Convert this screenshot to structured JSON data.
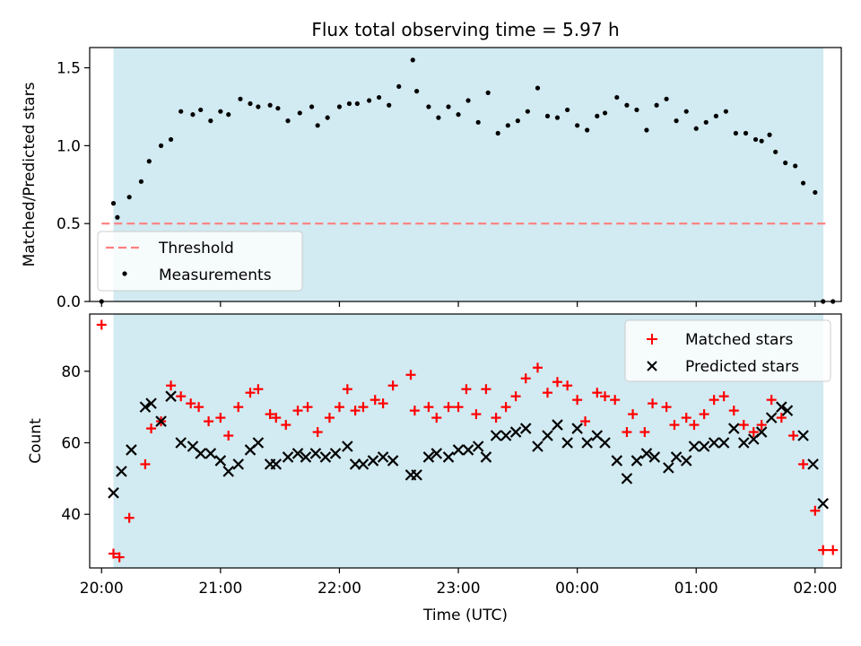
{
  "figure": {
    "title": "Flux total observing time = 5.97 h",
    "xlabel": "Time (UTC)"
  },
  "chart_data": [
    {
      "type": "scatter",
      "panel": "top",
      "ylabel": "Matched/Predicted stars",
      "xlim": [
        19.9,
        26.22
      ],
      "ylim": [
        0,
        1.63
      ],
      "y_ticks": [
        0.0,
        0.5,
        1.0,
        1.5
      ],
      "y_tick_labels": [
        "0.0",
        "0.5",
        "1.0",
        "1.5"
      ],
      "shaded_interval": [
        20.1,
        26.07
      ],
      "shade_color": "#add8e6",
      "legend_position": "lower-left",
      "threshold": {
        "name": "Threshold",
        "value": 0.5,
        "x_range": [
          20.0,
          26.1
        ],
        "color": "#ff7f7f"
      },
      "series": [
        {
          "name": "Measurements",
          "color": "#000000",
          "marker": "dot",
          "x": [
            20.0,
            20.1,
            20.133,
            20.233,
            20.333,
            20.4,
            20.5,
            20.583,
            20.667,
            20.767,
            20.833,
            20.917,
            21.0,
            21.067,
            21.167,
            21.25,
            21.317,
            21.417,
            21.483,
            21.567,
            21.667,
            21.767,
            21.817,
            21.9,
            22.0,
            22.083,
            22.15,
            22.25,
            22.333,
            22.417,
            22.5,
            22.617,
            22.65,
            22.75,
            22.833,
            22.917,
            23.0,
            23.083,
            23.167,
            23.25,
            23.333,
            23.417,
            23.5,
            23.583,
            23.667,
            23.75,
            23.833,
            23.917,
            24.0,
            24.083,
            24.167,
            24.233,
            24.333,
            24.417,
            24.5,
            24.583,
            24.667,
            24.75,
            24.833,
            24.917,
            25.0,
            25.083,
            25.167,
            25.25,
            25.333,
            25.417,
            25.5,
            25.55,
            25.617,
            25.667,
            25.75,
            25.833,
            25.9,
            26.0,
            26.067,
            26.15
          ],
          "y": [
            0.0,
            0.63,
            0.54,
            0.67,
            0.77,
            0.9,
            1.0,
            1.04,
            1.22,
            1.2,
            1.23,
            1.16,
            1.22,
            1.2,
            1.3,
            1.27,
            1.25,
            1.26,
            1.24,
            1.16,
            1.21,
            1.25,
            1.13,
            1.18,
            1.25,
            1.27,
            1.27,
            1.29,
            1.31,
            1.26,
            1.38,
            1.55,
            1.35,
            1.25,
            1.18,
            1.25,
            1.2,
            1.29,
            1.15,
            1.34,
            1.08,
            1.13,
            1.16,
            1.22,
            1.37,
            1.19,
            1.18,
            1.23,
            1.13,
            1.1,
            1.19,
            1.21,
            1.31,
            1.26,
            1.23,
            1.1,
            1.26,
            1.3,
            1.16,
            1.22,
            1.11,
            1.15,
            1.19,
            1.22,
            1.08,
            1.08,
            1.04,
            1.03,
            1.07,
            0.96,
            0.89,
            0.87,
            0.76,
            0.7,
            0.0,
            0.0
          ]
        }
      ]
    },
    {
      "type": "scatter",
      "panel": "bottom",
      "ylabel": "Count",
      "xlim": [
        19.9,
        26.22
      ],
      "ylim": [
        25,
        96
      ],
      "x_ticks": [
        20,
        21,
        22,
        23,
        24,
        25,
        26
      ],
      "x_tick_labels": [
        "20:00",
        "21:00",
        "22:00",
        "23:00",
        "00:00",
        "01:00",
        "02:00"
      ],
      "y_ticks": [
        40,
        60,
        80
      ],
      "y_tick_labels": [
        "40",
        "60",
        "80"
      ],
      "shaded_interval": [
        20.1,
        26.07
      ],
      "shade_color": "#add8e6",
      "legend_position": "top-right",
      "series": [
        {
          "name": "Matched stars",
          "color": "#ff0000",
          "marker": "plus",
          "x": [
            20.0,
            20.1,
            20.15,
            20.233,
            20.367,
            20.417,
            20.5,
            20.583,
            20.667,
            20.75,
            20.817,
            20.9,
            21.0,
            21.067,
            21.15,
            21.25,
            21.317,
            21.417,
            21.467,
            21.55,
            21.65,
            21.733,
            21.817,
            21.917,
            22.0,
            22.067,
            22.133,
            22.2,
            22.3,
            22.367,
            22.45,
            22.6,
            22.633,
            22.75,
            22.817,
            22.917,
            23.0,
            23.067,
            23.15,
            23.233,
            23.317,
            23.4,
            23.483,
            23.567,
            23.667,
            23.75,
            23.833,
            23.917,
            24.0,
            24.067,
            24.167,
            24.233,
            24.317,
            24.417,
            24.467,
            24.567,
            24.633,
            24.75,
            24.817,
            24.917,
            24.983,
            25.067,
            25.15,
            25.233,
            25.317,
            25.4,
            25.483,
            25.55,
            25.633,
            25.717,
            25.817,
            25.9,
            26.0,
            26.067,
            26.15
          ],
          "y": [
            93,
            29,
            28,
            39,
            54,
            64,
            66,
            76,
            73,
            71,
            70,
            66,
            67,
            62,
            70,
            74,
            75,
            68,
            67,
            65,
            69,
            70,
            63,
            67,
            70,
            75,
            69,
            70,
            72,
            71,
            76,
            79,
            69,
            70,
            67,
            70,
            70,
            75,
            68,
            75,
            67,
            70,
            73,
            78,
            81,
            74,
            77,
            76,
            72,
            66,
            74,
            73,
            72,
            63,
            68,
            63,
            71,
            70,
            65,
            67,
            65,
            68,
            72,
            73,
            69,
            65,
            63,
            65,
            72,
            67,
            62,
            54,
            41,
            30,
            30
          ]
        },
        {
          "name": "Predicted stars",
          "color": "#000000",
          "marker": "x",
          "x": [
            20.1,
            20.167,
            20.25,
            20.367,
            20.417,
            20.5,
            20.583,
            20.667,
            20.767,
            20.833,
            20.917,
            21.0,
            21.067,
            21.15,
            21.25,
            21.317,
            21.417,
            21.467,
            21.567,
            21.65,
            21.717,
            21.8,
            21.883,
            21.967,
            22.067,
            22.133,
            22.2,
            22.283,
            22.367,
            22.45,
            22.6,
            22.65,
            22.75,
            22.817,
            22.917,
            23.0,
            23.083,
            23.167,
            23.233,
            23.317,
            23.4,
            23.483,
            23.567,
            23.667,
            23.75,
            23.833,
            23.917,
            24.0,
            24.083,
            24.167,
            24.233,
            24.333,
            24.417,
            24.5,
            24.583,
            24.65,
            24.767,
            24.833,
            24.917,
            24.983,
            25.067,
            25.15,
            25.233,
            25.317,
            25.4,
            25.483,
            25.55,
            25.633,
            25.717,
            25.767,
            25.9,
            25.983,
            26.067
          ],
          "y": [
            46,
            52,
            58,
            70,
            71,
            66,
            73,
            60,
            59,
            57,
            57,
            55,
            52,
            54,
            58,
            60,
            54,
            54,
            56,
            57,
            56,
            57,
            56,
            57,
            59,
            54,
            54,
            55,
            56,
            55,
            51,
            51,
            56,
            57,
            56,
            58,
            58,
            59,
            56,
            62,
            62,
            63,
            64,
            59,
            62,
            65,
            60,
            64,
            60,
            62,
            60,
            55,
            50,
            55,
            57,
            56,
            53,
            56,
            55,
            59,
            59,
            60,
            60,
            64,
            60,
            61,
            63,
            67,
            70,
            69,
            62,
            54,
            43
          ]
        }
      ]
    }
  ]
}
